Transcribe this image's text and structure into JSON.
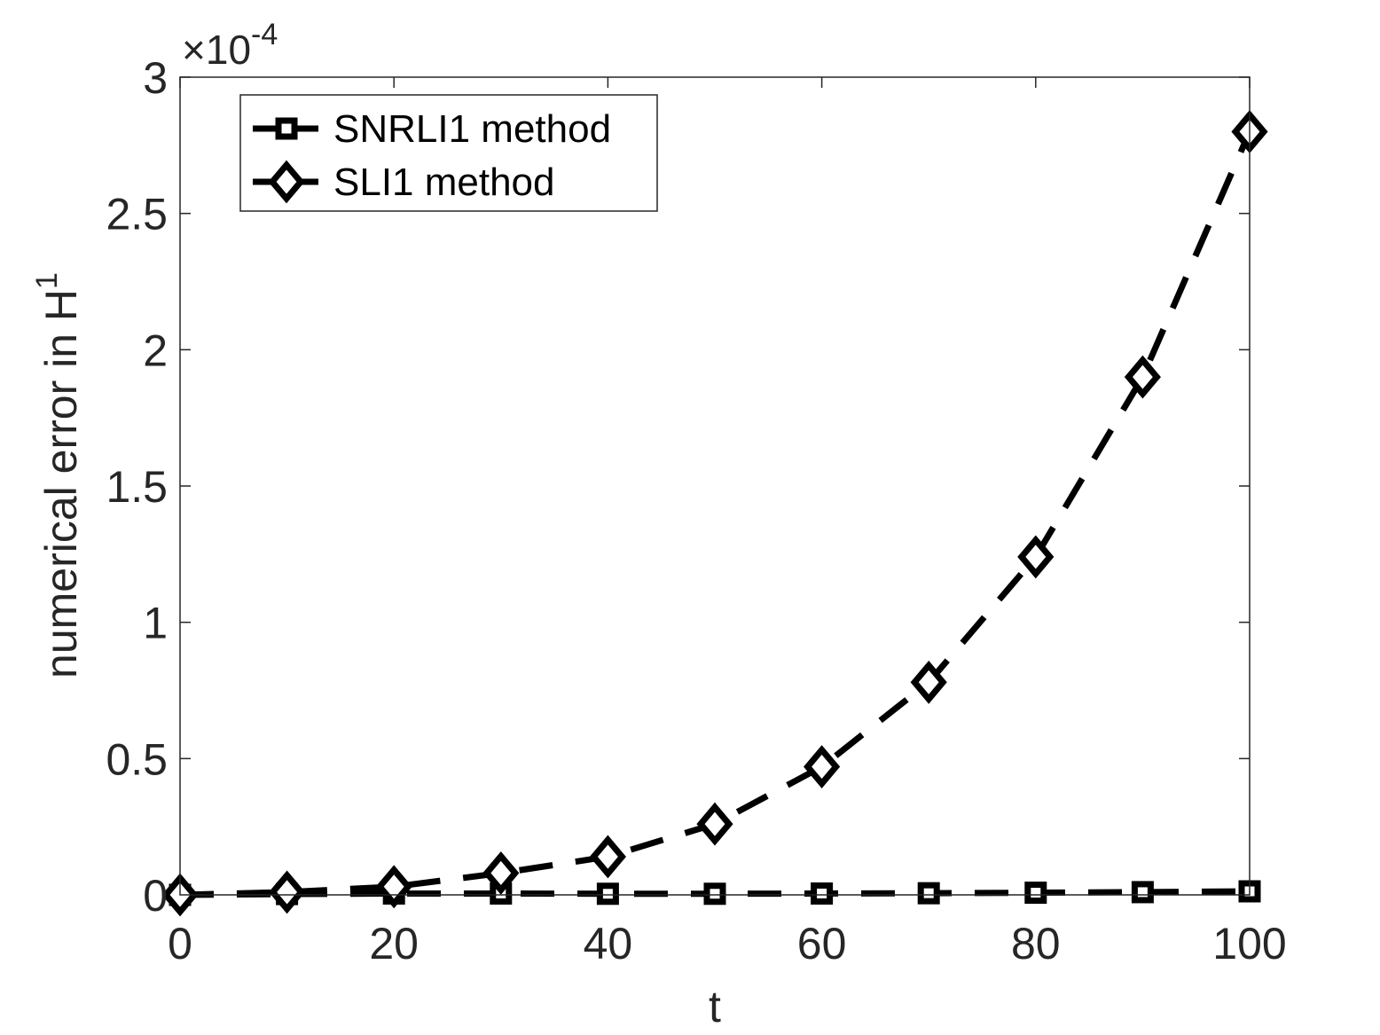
{
  "chart_data": {
    "type": "line",
    "xlabel": "t",
    "ylabel": "numerical error in H",
    "ylabel_superscript": "1",
    "y_exponent_base": "×10",
    "y_exponent_power": "-4",
    "xlim": [
      0,
      100
    ],
    "ylim": [
      0,
      3
    ],
    "x_ticks": [
      "0",
      "20",
      "40",
      "60",
      "80",
      "100"
    ],
    "y_ticks": [
      "0",
      "0.5",
      "1",
      "1.5",
      "2",
      "2.5",
      "3"
    ],
    "grid": false,
    "legend_position": "top-left",
    "x": [
      0,
      10,
      20,
      30,
      40,
      50,
      60,
      70,
      80,
      90,
      100
    ],
    "series": [
      {
        "name": "SNRLI1 method",
        "marker": "square",
        "line_style": "dashed",
        "color": "#000000",
        "values": [
          0,
          0.003,
          0.005,
          0.005,
          0.004,
          0.004,
          0.005,
          0.006,
          0.008,
          0.01,
          0.013
        ]
      },
      {
        "name": "SLI1 method",
        "marker": "diamond",
        "line_style": "dashed",
        "color": "#000000",
        "values": [
          0,
          0.01,
          0.03,
          0.08,
          0.14,
          0.26,
          0.47,
          0.78,
          1.24,
          1.9,
          2.8
        ]
      }
    ]
  }
}
